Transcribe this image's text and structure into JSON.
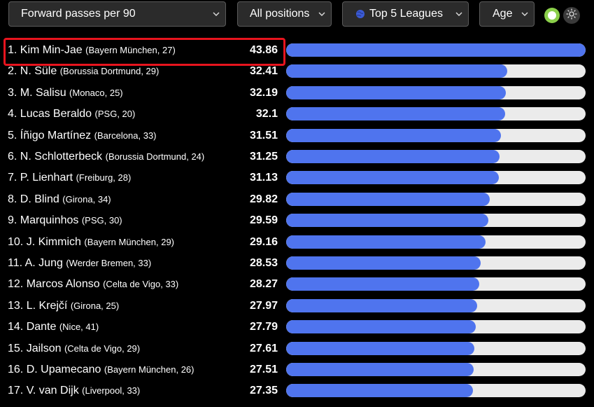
{
  "filters": {
    "stat": "Forward passes per 90",
    "position": "All positions",
    "league": "Top 5 Leagues",
    "age": "Age"
  },
  "colors": {
    "bar_fill": "#4f74ee",
    "bar_track": "#ebebeb",
    "highlight": "#e8141e",
    "toggle": "#8bcf4a"
  },
  "max_value": 43.86,
  "players": [
    {
      "rank_name": "1. Kim Min-Jae",
      "meta": "(Bayern München, 27)",
      "value": "43.86"
    },
    {
      "rank_name": "2. N. Süle",
      "meta": "(Borussia Dortmund, 29)",
      "value": "32.41"
    },
    {
      "rank_name": "3. M. Salisu",
      "meta": "(Monaco, 25)",
      "value": "32.19"
    },
    {
      "rank_name": "4. Lucas Beraldo",
      "meta": "(PSG, 20)",
      "value": "32.1"
    },
    {
      "rank_name": "5. Íñigo Martínez",
      "meta": "(Barcelona, 33)",
      "value": "31.51"
    },
    {
      "rank_name": "6. N. Schlotterbeck",
      "meta": "(Borussia Dortmund, 24)",
      "value": "31.25"
    },
    {
      "rank_name": "7. P. Lienhart",
      "meta": "(Freiburg, 28)",
      "value": "31.13"
    },
    {
      "rank_name": "8. D. Blind",
      "meta": "(Girona, 34)",
      "value": "29.82"
    },
    {
      "rank_name": "9. Marquinhos",
      "meta": "(PSG, 30)",
      "value": "29.59"
    },
    {
      "rank_name": "10. J. Kimmich",
      "meta": "(Bayern München, 29)",
      "value": "29.16"
    },
    {
      "rank_name": "11. A. Jung",
      "meta": "(Werder Bremen, 33)",
      "value": "28.53"
    },
    {
      "rank_name": "12. Marcos Alonso",
      "meta": "(Celta de Vigo, 33)",
      "value": "28.27"
    },
    {
      "rank_name": "13. L. Krejčí",
      "meta": "(Girona, 25)",
      "value": "27.97"
    },
    {
      "rank_name": "14. Dante",
      "meta": "(Nice, 41)",
      "value": "27.79"
    },
    {
      "rank_name": "15. Jailson",
      "meta": "(Celta de Vigo, 29)",
      "value": "27.61"
    },
    {
      "rank_name": "16. D. Upamecano",
      "meta": "(Bayern München, 26)",
      "value": "27.51"
    },
    {
      "rank_name": "17. V. van Dijk",
      "meta": "(Liverpool, 33)",
      "value": "27.35"
    }
  ]
}
